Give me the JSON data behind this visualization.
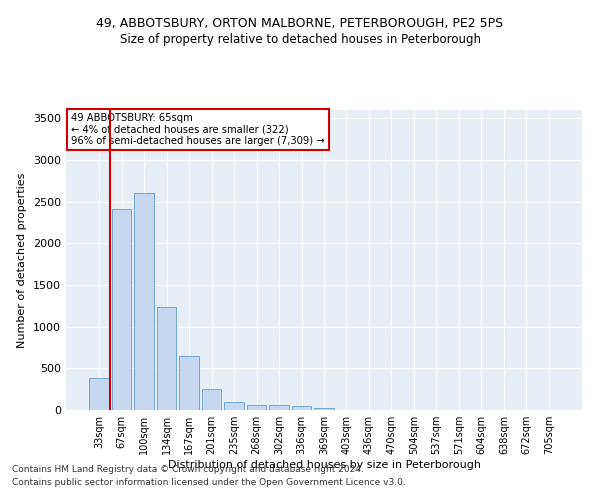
{
  "title1": "49, ABBOTSBURY, ORTON MALBORNE, PETERBOROUGH, PE2 5PS",
  "title2": "Size of property relative to detached houses in Peterborough",
  "xlabel": "Distribution of detached houses by size in Peterborough",
  "ylabel": "Number of detached properties",
  "categories": [
    "33sqm",
    "67sqm",
    "100sqm",
    "134sqm",
    "167sqm",
    "201sqm",
    "235sqm",
    "268sqm",
    "302sqm",
    "336sqm",
    "369sqm",
    "403sqm",
    "436sqm",
    "470sqm",
    "504sqm",
    "537sqm",
    "571sqm",
    "604sqm",
    "638sqm",
    "672sqm",
    "705sqm"
  ],
  "values": [
    390,
    2410,
    2610,
    1240,
    645,
    255,
    95,
    65,
    60,
    45,
    30,
    0,
    0,
    0,
    0,
    0,
    0,
    0,
    0,
    0,
    0
  ],
  "bar_color": "#c5d8ef",
  "bar_edge_color": "#6fa8d4",
  "vline_color": "#cc0000",
  "annotation_text": "49 ABBOTSBURY: 65sqm\n← 4% of detached houses are smaller (322)\n96% of semi-detached houses are larger (7,309) →",
  "annotation_box_color": "#ffffff",
  "annotation_box_edge": "#cc0000",
  "ylim": [
    0,
    3600
  ],
  "yticks": [
    0,
    500,
    1000,
    1500,
    2000,
    2500,
    3000,
    3500
  ],
  "bg_color": "#e8eef6",
  "grid_color": "#ffffff",
  "footer1": "Contains HM Land Registry data © Crown copyright and database right 2024.",
  "footer2": "Contains public sector information licensed under the Open Government Licence v3.0."
}
